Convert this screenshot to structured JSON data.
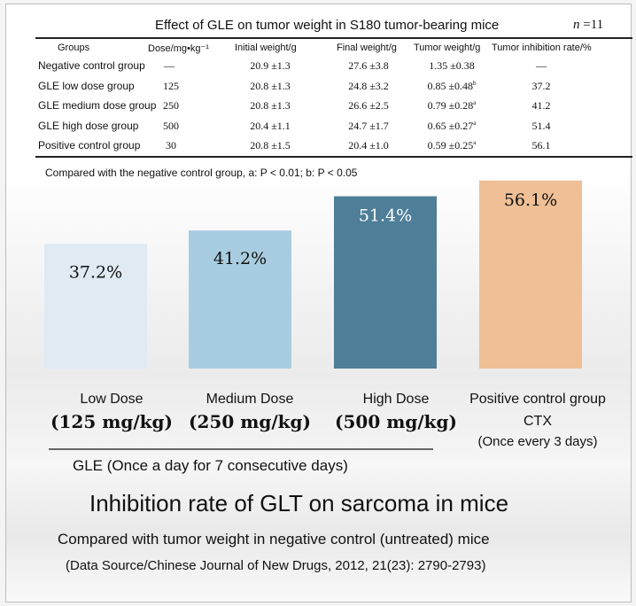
{
  "table": {
    "title": "Effect of GLE on tumor weight in S180 tumor-bearing mice",
    "n_label": "n",
    "n_value": "=11",
    "headers": [
      "Groups",
      "Dose/mg•kg⁻¹",
      "Initial weight/g",
      "Final weight/g",
      "Tumor weight/g",
      "Tumor inhibition rate/%"
    ],
    "rows": [
      {
        "group": "Negative control group",
        "dose": "—",
        "initial": "20.9 ±1.3",
        "final": "27.6 ±3.8",
        "tumor": "1.35 ±0.38",
        "sig": "",
        "rate": "—"
      },
      {
        "group": "GLE low dose group",
        "dose": "125",
        "initial": "20.8 ±1.3",
        "final": "24.8 ±3.2",
        "tumor": "0.85 ±0.48",
        "sig": "b",
        "rate": "37.2"
      },
      {
        "group": "GLE medium dose group",
        "dose": "250",
        "initial": "20.8 ±1.3",
        "final": "26.6 ±2.5",
        "tumor": "0.79 ±0.28",
        "sig": "a",
        "rate": "41.2"
      },
      {
        "group": "GLE high dose group",
        "dose": "500",
        "initial": "20.4 ±1.1",
        "final": "24.7 ±1.7",
        "tumor": "0.65 ±0.27",
        "sig": "a",
        "rate": "51.4"
      },
      {
        "group": "Positive control group",
        "dose": "30",
        "initial": "20.8 ±1.5",
        "final": "20.4 ±1.0",
        "tumor": "0.59 ±0.25",
        "sig": "a",
        "rate": "56.1"
      }
    ],
    "note": "Compared with the negative control group, a: P < 0.01; b: P < 0.05"
  },
  "chart_data": {
    "type": "bar",
    "title": "Inhibition rate of GLT on sarcoma in mice",
    "subtitle": "Compared with tumor weight in negative control (untreated) mice",
    "source": "(Data Source/Chinese Journal of New Drugs, 2012, 21(23): 2790-2793)",
    "categories": [
      {
        "name": "Low Dose",
        "dose": "(125 mg/kg)",
        "extra": ""
      },
      {
        "name": "Medium Dose",
        "dose": "(250 mg/kg)",
        "extra": ""
      },
      {
        "name": "High Dose",
        "dose": "(500 mg/kg)",
        "extra": ""
      },
      {
        "name": "Positive control group",
        "dose": "",
        "extra": "CTX",
        "extra2": "(Once every 3 days)"
      }
    ],
    "values": [
      37.2,
      41.2,
      51.4,
      56.1
    ],
    "value_labels": [
      "37.2%",
      "41.2%",
      "51.4%",
      "56.1%"
    ],
    "colors": [
      "#dfeaf3",
      "#a9cde0",
      "#4e7e98",
      "#efbf95"
    ],
    "group_label": "GLE (Once a day for 7 consecutive days)",
    "ylim": [
      0,
      60
    ],
    "grid": false
  }
}
